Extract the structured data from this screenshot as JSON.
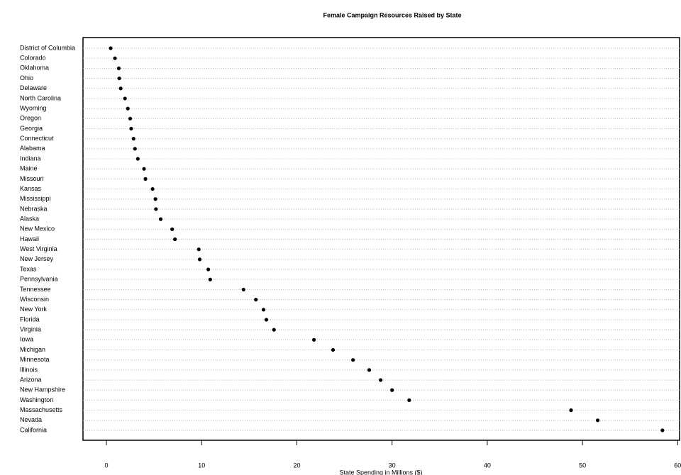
{
  "chart_data": {
    "type": "dot",
    "title": "Female Campaign Resources Raised by State",
    "x_label": "State Spending in Millions ($)",
    "categories": [
      "District of Columbia",
      "Colorado",
      "Oklahoma",
      "Ohio",
      "Delaware",
      "North Carolina",
      "Wyoming",
      "Oregon",
      "Georgia",
      "Connecticut",
      "Alabama",
      "Indiana",
      "Maine",
      "Missouri",
      "Kansas",
      "Mississippi",
      "Nebraska",
      "Alaska",
      "New Mexico",
      "Hawaii",
      "West Virginia",
      "New Jersey",
      "Texas",
      "Pennsylvania",
      "Tennessee",
      "Wisconsin",
      "New York",
      "Florida",
      "Virginia",
      "Iowa",
      "Michigan",
      "Minnesota",
      "Illinois",
      "Arizona",
      "New Hampshire",
      "Washington",
      "Massachusetts",
      "Nevada",
      "California"
    ],
    "values": [
      0.45,
      0.9,
      1.3,
      1.35,
      1.5,
      1.95,
      2.25,
      2.5,
      2.6,
      2.85,
      3.0,
      3.3,
      3.95,
      4.1,
      4.85,
      5.15,
      5.2,
      5.7,
      6.9,
      7.2,
      9.7,
      9.8,
      10.7,
      10.9,
      14.4,
      15.7,
      16.5,
      16.8,
      17.6,
      21.8,
      23.8,
      25.9,
      27.6,
      28.8,
      30.0,
      31.8,
      48.8,
      51.6,
      58.4
    ],
    "color": "#000000",
    "xlim": [
      -2.46,
      60.2
    ],
    "xticks": [
      0,
      10,
      20,
      30,
      40,
      50,
      60
    ],
    "grid": true
  }
}
